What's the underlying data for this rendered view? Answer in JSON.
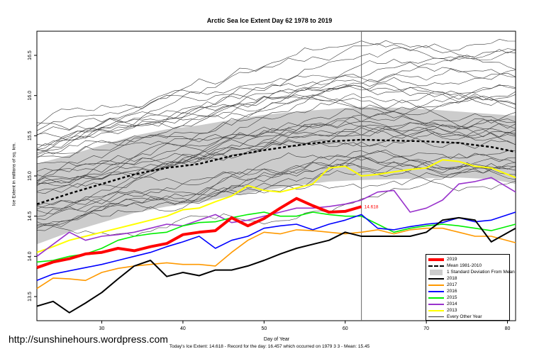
{
  "chart_data": {
    "type": "line",
    "title": "Arctic Sea Ice Extent Day 62 1978 to 2019",
    "xlabel": "Day of Year",
    "ylabel": "Ice Extent in millions of sq. km.",
    "xlim": [
      22,
      81
    ],
    "ylim": [
      13.2,
      16.8
    ],
    "xticks": [
      30,
      40,
      50,
      60,
      70,
      80
    ],
    "yticks": [
      13.5,
      14.0,
      14.5,
      15.0,
      15.5,
      16.0,
      16.5
    ],
    "vline_day": 62,
    "current_label": "14.618",
    "mean": {
      "name": "Mean 1981-2010",
      "x": [
        22,
        26,
        30,
        34,
        38,
        42,
        46,
        50,
        54,
        58,
        62,
        66,
        70,
        74,
        78,
        81
      ],
      "y": [
        14.65,
        14.78,
        14.9,
        15.02,
        15.1,
        15.15,
        15.25,
        15.32,
        15.38,
        15.43,
        15.45,
        15.44,
        15.43,
        15.41,
        15.36,
        15.3
      ]
    },
    "band": {
      "name": "1 Standard Deviation From Mean",
      "x": [
        22,
        26,
        30,
        34,
        38,
        42,
        46,
        50,
        54,
        58,
        62,
        66,
        70,
        74,
        78,
        81
      ],
      "upper": [
        15.15,
        15.26,
        15.38,
        15.5,
        15.58,
        15.63,
        15.7,
        15.76,
        15.8,
        15.83,
        15.86,
        15.85,
        15.83,
        15.8,
        15.77,
        15.75
      ],
      "lower": [
        14.15,
        14.3,
        14.42,
        14.54,
        14.62,
        14.67,
        14.75,
        14.82,
        14.88,
        14.93,
        14.95,
        14.96,
        14.97,
        14.98,
        14.96,
        14.9
      ]
    },
    "series": [
      {
        "name": "2019",
        "color": "#ff0000",
        "width": 4,
        "x": [
          22,
          24,
          26,
          28,
          30,
          32,
          34,
          36,
          38,
          40,
          42,
          44,
          46,
          48,
          50,
          52,
          54,
          56,
          58,
          60,
          62
        ],
        "y": [
          13.86,
          13.93,
          13.97,
          14.03,
          14.05,
          14.1,
          14.07,
          14.12,
          14.16,
          14.27,
          14.3,
          14.32,
          14.48,
          14.38,
          14.47,
          14.6,
          14.72,
          14.63,
          14.55,
          14.56,
          14.618
        ]
      },
      {
        "name": "2018",
        "color": "#000000",
        "width": 2,
        "x": [
          22,
          24,
          26,
          28,
          30,
          32,
          34,
          36,
          38,
          40,
          42,
          44,
          46,
          48,
          50,
          52,
          54,
          56,
          58,
          60,
          62,
          64,
          66,
          68,
          70,
          72,
          74,
          76,
          78,
          81
        ],
        "y": [
          13.38,
          13.44,
          13.3,
          13.42,
          13.55,
          13.72,
          13.88,
          13.95,
          13.75,
          13.8,
          13.76,
          13.83,
          13.83,
          13.88,
          13.95,
          14.03,
          14.1,
          14.15,
          14.2,
          14.3,
          14.25,
          14.25,
          14.25,
          14.25,
          14.3,
          14.45,
          14.48,
          14.45,
          14.18,
          14.35
        ]
      },
      {
        "name": "2017",
        "color": "#ff9900",
        "width": 1.6,
        "x": [
          22,
          24,
          26,
          28,
          30,
          32,
          34,
          36,
          38,
          40,
          42,
          44,
          46,
          48,
          50,
          52,
          54,
          56,
          58,
          60,
          62,
          64,
          66,
          68,
          70,
          72,
          74,
          76,
          78,
          81
        ],
        "y": [
          13.6,
          13.73,
          13.72,
          13.7,
          13.8,
          13.85,
          13.88,
          13.9,
          13.92,
          13.9,
          13.9,
          13.88,
          14.05,
          14.2,
          14.3,
          14.28,
          14.33,
          14.32,
          14.3,
          14.28,
          14.3,
          14.33,
          14.28,
          14.33,
          14.35,
          14.35,
          14.3,
          14.25,
          14.25,
          14.17
        ]
      },
      {
        "name": "2016",
        "color": "#0000ff",
        "width": 1.6,
        "x": [
          22,
          24,
          26,
          28,
          30,
          32,
          34,
          36,
          38,
          40,
          42,
          44,
          46,
          48,
          50,
          52,
          54,
          56,
          58,
          60,
          62,
          64,
          66,
          68,
          70,
          72,
          74,
          76,
          78,
          81
        ],
        "y": [
          13.7,
          13.78,
          13.82,
          13.86,
          13.9,
          13.95,
          14.0,
          14.05,
          14.12,
          14.18,
          14.25,
          14.1,
          14.2,
          14.25,
          14.35,
          14.38,
          14.4,
          14.33,
          14.4,
          14.45,
          14.52,
          14.35,
          14.33,
          14.37,
          14.4,
          14.42,
          14.48,
          14.43,
          14.45,
          14.55
        ]
      },
      {
        "name": "2015",
        "color": "#00ee00",
        "width": 1.6,
        "x": [
          22,
          24,
          26,
          28,
          30,
          32,
          34,
          36,
          38,
          40,
          42,
          44,
          46,
          48,
          50,
          52,
          54,
          56,
          58,
          60,
          62,
          64,
          66,
          68,
          70,
          72,
          74,
          76,
          78,
          81
        ],
        "y": [
          13.93,
          13.95,
          14.0,
          14.03,
          14.1,
          14.2,
          14.25,
          14.28,
          14.3,
          14.38,
          14.42,
          14.43,
          14.48,
          14.52,
          14.55,
          14.5,
          14.5,
          14.55,
          14.52,
          14.5,
          14.5,
          14.4,
          14.3,
          14.35,
          14.38,
          14.4,
          14.38,
          14.35,
          14.32,
          14.4
        ]
      },
      {
        "name": "2014",
        "color": "#9933cc",
        "width": 1.6,
        "x": [
          22,
          24,
          26,
          28,
          30,
          32,
          34,
          36,
          38,
          40,
          42,
          44,
          46,
          48,
          50,
          52,
          54,
          56,
          58,
          60,
          62,
          64,
          66,
          68,
          70,
          72,
          74,
          76,
          78,
          81
        ],
        "y": [
          14.0,
          14.15,
          14.3,
          14.2,
          14.25,
          14.27,
          14.3,
          14.35,
          14.4,
          14.38,
          14.45,
          14.52,
          14.42,
          14.45,
          14.5,
          14.55,
          14.6,
          14.6,
          14.62,
          14.65,
          14.7,
          14.8,
          14.82,
          14.55,
          14.6,
          14.7,
          14.9,
          14.93,
          14.98,
          14.8
        ]
      },
      {
        "name": "2013",
        "color": "#ffff00",
        "width": 2,
        "x": [
          22,
          24,
          26,
          28,
          30,
          32,
          34,
          36,
          38,
          40,
          42,
          44,
          46,
          48,
          50,
          52,
          54,
          56,
          58,
          60,
          62,
          64,
          66,
          68,
          70,
          72,
          74,
          76,
          78,
          81
        ],
        "y": [
          14.05,
          14.12,
          14.2,
          14.25,
          14.3,
          14.35,
          14.4,
          14.45,
          14.5,
          14.58,
          14.6,
          14.68,
          14.75,
          14.88,
          14.82,
          14.8,
          14.85,
          14.9,
          15.1,
          15.12,
          15.0,
          15.02,
          15.05,
          15.08,
          15.1,
          15.2,
          15.18,
          15.12,
          15.1,
          14.98
        ]
      }
    ],
    "legend_entries": [
      "2019",
      "Mean 1981-2010",
      "1 Standard Deviation From Mean",
      "2018",
      "2017",
      "2016",
      "2015",
      "2014",
      "2013",
      "Every Other Year"
    ],
    "legend_position": "bottom-right",
    "other_years_label": "Every Other Year"
  },
  "footnote": "Today's Ice Extent: 14.618  - Record for the day: 16.457 which occurred on 1979 3 3  - Mean: 15.45",
  "watermark": "http://sunshinehours.wordpress.com"
}
